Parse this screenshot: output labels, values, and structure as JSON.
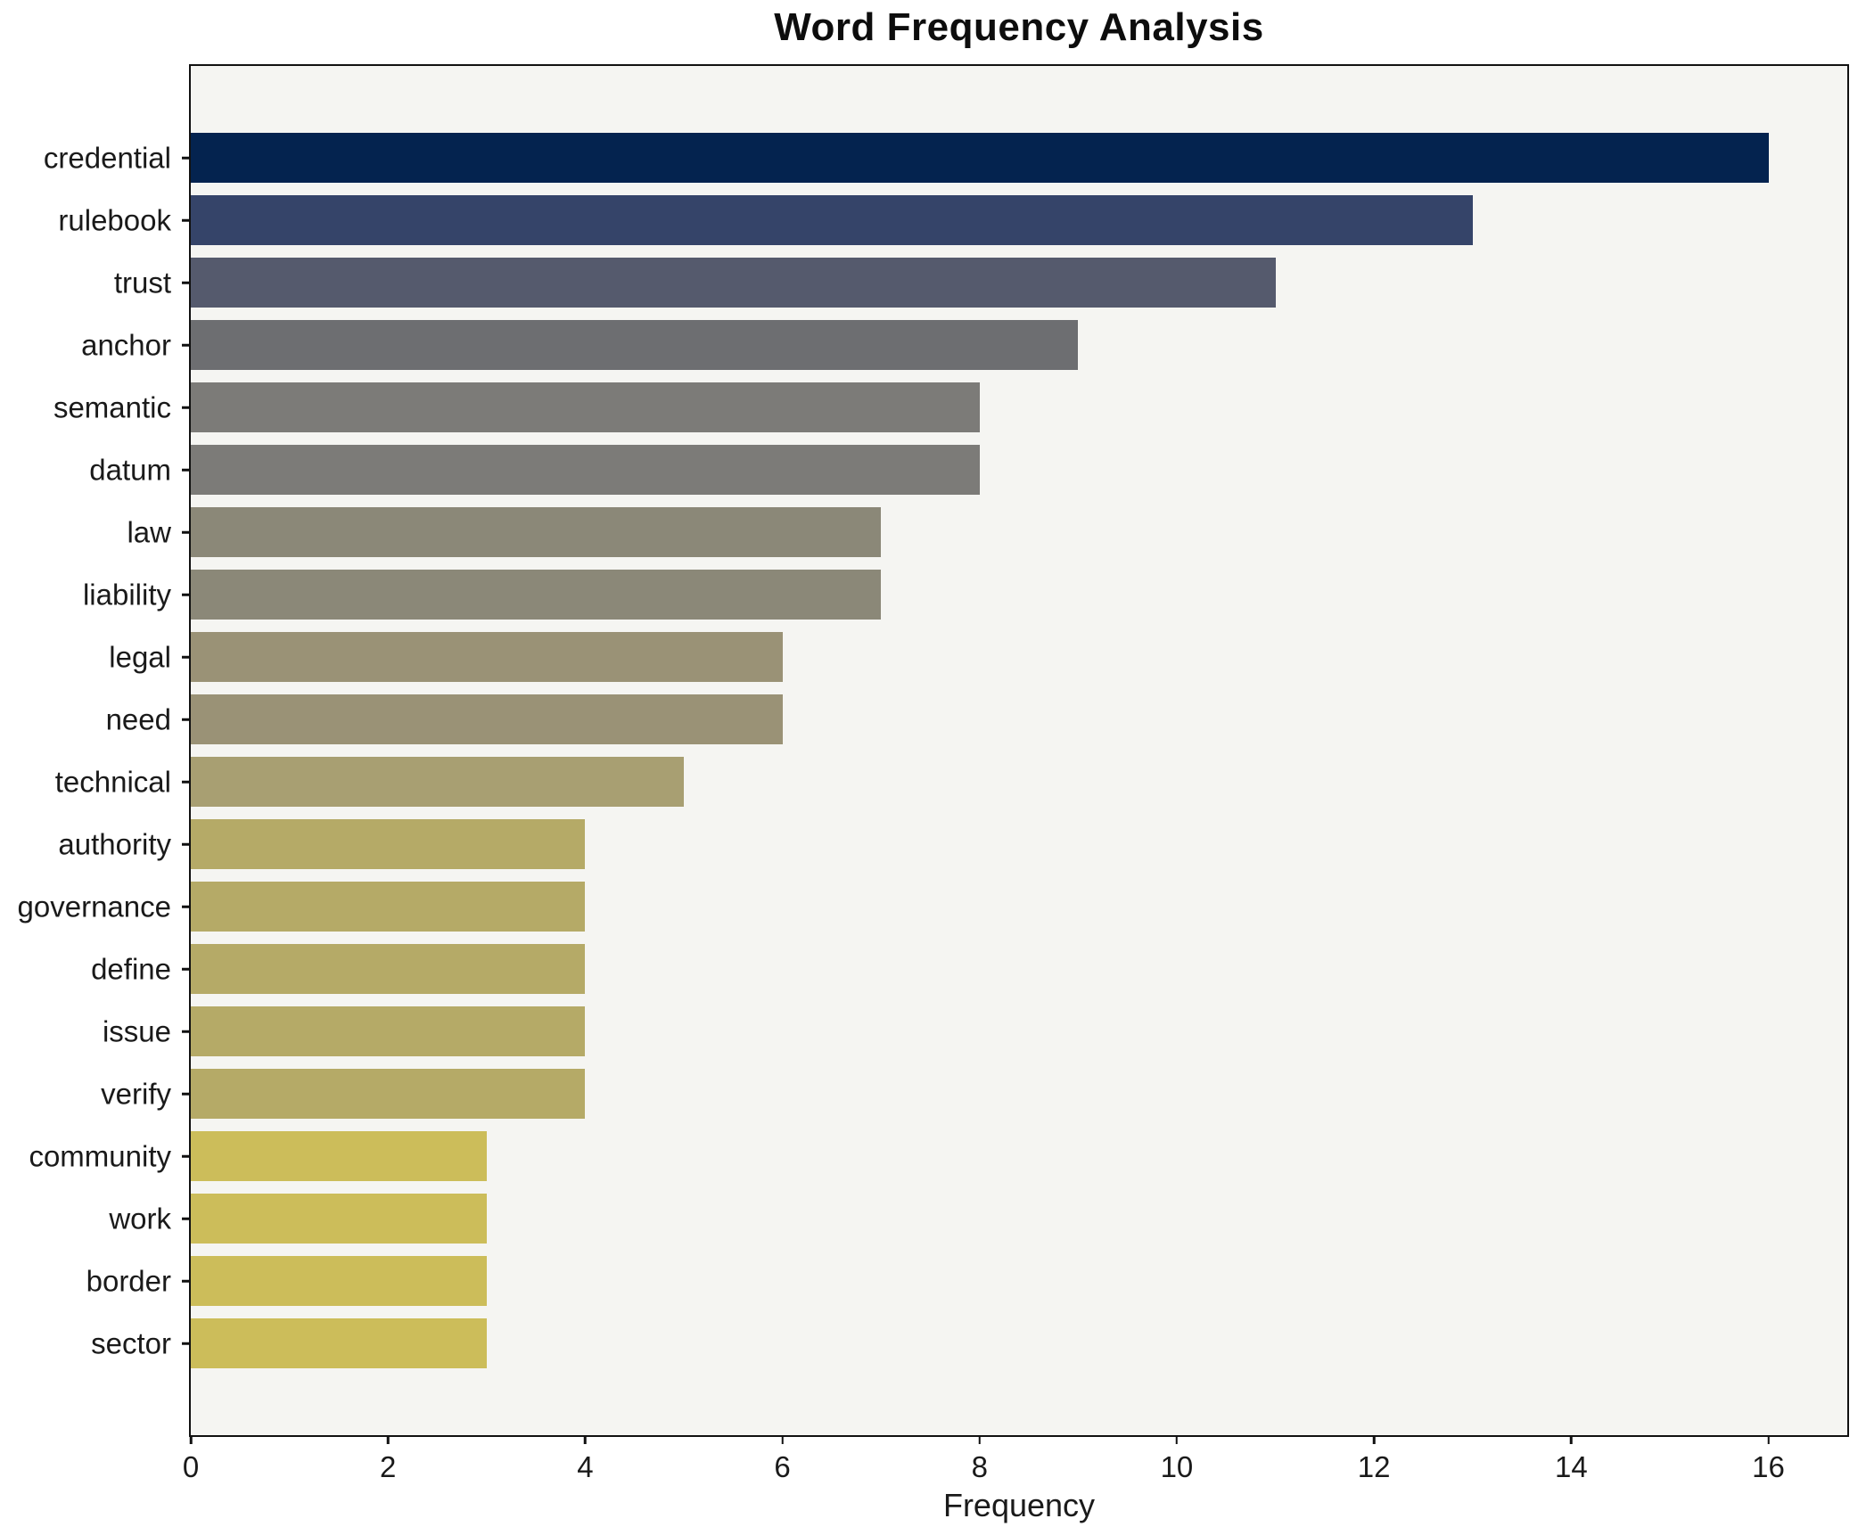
{
  "title": "Word Frequency Analysis",
  "chart_data": {
    "type": "bar",
    "orientation": "horizontal",
    "title": "Word Frequency Analysis",
    "xlabel": "Frequency",
    "ylabel": "",
    "categories": [
      "credential",
      "rulebook",
      "trust",
      "anchor",
      "semantic",
      "datum",
      "law",
      "liability",
      "legal",
      "need",
      "technical",
      "authority",
      "governance",
      "define",
      "issue",
      "verify",
      "community",
      "work",
      "border",
      "sector"
    ],
    "values": [
      16,
      13,
      11,
      9,
      8,
      8,
      7,
      7,
      6,
      6,
      5,
      4,
      4,
      4,
      4,
      4,
      3,
      3,
      3,
      3
    ],
    "bar_colors": [
      "#04234f",
      "#354469",
      "#555a6d",
      "#6d6e71",
      "#7c7b78",
      "#7c7b78",
      "#8b8878",
      "#8b8878",
      "#9a9276",
      "#9a9276",
      "#a89f72",
      "#b5aa67",
      "#b5aa67",
      "#b5aa67",
      "#b5aa67",
      "#b5aa67",
      "#ccbd5a",
      "#ccbd5a",
      "#ccbd5a",
      "#ccbd5a"
    ],
    "xlim": [
      0,
      16.8
    ],
    "xticks": [
      0,
      2,
      4,
      6,
      8,
      10,
      12,
      14,
      16
    ],
    "grid": false,
    "legend_position": "none",
    "plot_bg": "#f5f5f2",
    "figure_bg": "#ffffff",
    "spine_color": "#111111"
  }
}
